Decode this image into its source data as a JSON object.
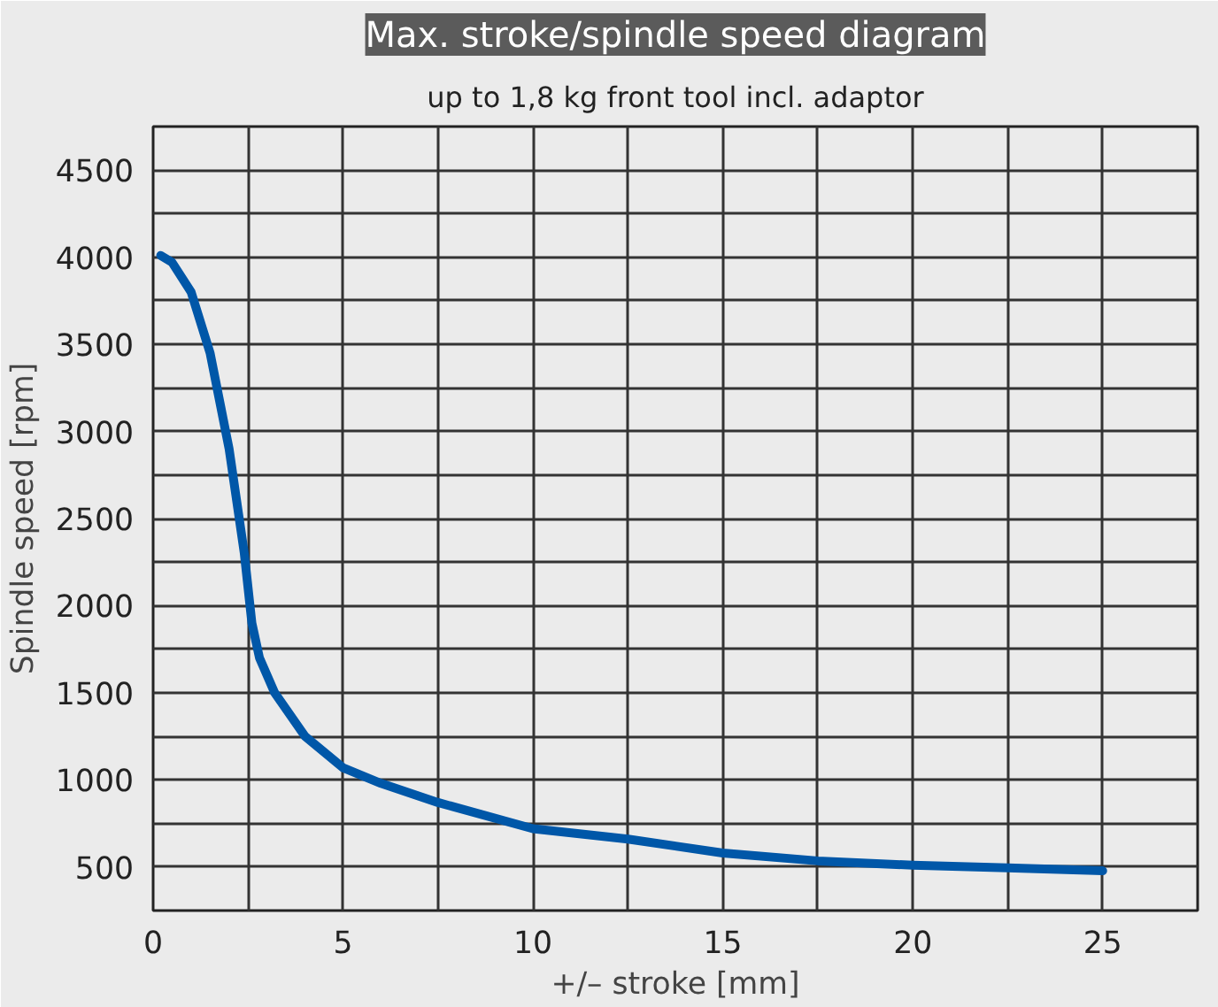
{
  "chart_data": {
    "type": "line",
    "title": "Max. stroke/spindle speed diagram",
    "subtitle": "up to 1,8 kg front tool incl. adaptor",
    "xlabel": "+/– stroke [mm]",
    "ylabel": "Spindle speed [rpm]",
    "x": [
      0.2,
      0.5,
      1,
      1.5,
      2,
      2.4,
      2.6,
      2.8,
      3.2,
      4,
      5,
      6,
      7.5,
      10,
      12.5,
      15,
      17.5,
      20,
      22.5,
      25
    ],
    "series": [
      {
        "color": "#0057a8",
        "values": [
          4010,
          3970,
          3800,
          3450,
          2900,
          2300,
          1900,
          1700,
          1500,
          1250,
          1070,
          980,
          870,
          720,
          660,
          580,
          535,
          510,
          495,
          478
        ]
      }
    ],
    "xlim": [
      0,
      27.5
    ],
    "ylim": [
      250,
      4750
    ],
    "xticks": [
      0,
      {
        "value": 2.5,
        "label": null
      },
      5,
      {
        "value": 7.5,
        "label": null
      },
      10,
      {
        "value": 12.5,
        "label": null
      },
      15,
      {
        "value": 17.5,
        "label": null
      },
      20,
      {
        "value": 22.5,
        "label": null
      },
      25
    ],
    "yticks": [
      500,
      {
        "value": 750,
        "label": null
      },
      1000,
      {
        "value": 1250,
        "label": null
      },
      1500,
      {
        "value": 1750,
        "label": null
      },
      2000,
      {
        "value": 2250,
        "label": null
      },
      2500,
      {
        "value": 2750,
        "label": null
      },
      3000,
      {
        "value": 3250,
        "label": null
      },
      3500,
      {
        "value": 3750,
        "label": null
      },
      4000,
      {
        "value": 4250,
        "label": null
      },
      4500
    ],
    "grid": true,
    "marker": "none",
    "line_style": "solid"
  }
}
